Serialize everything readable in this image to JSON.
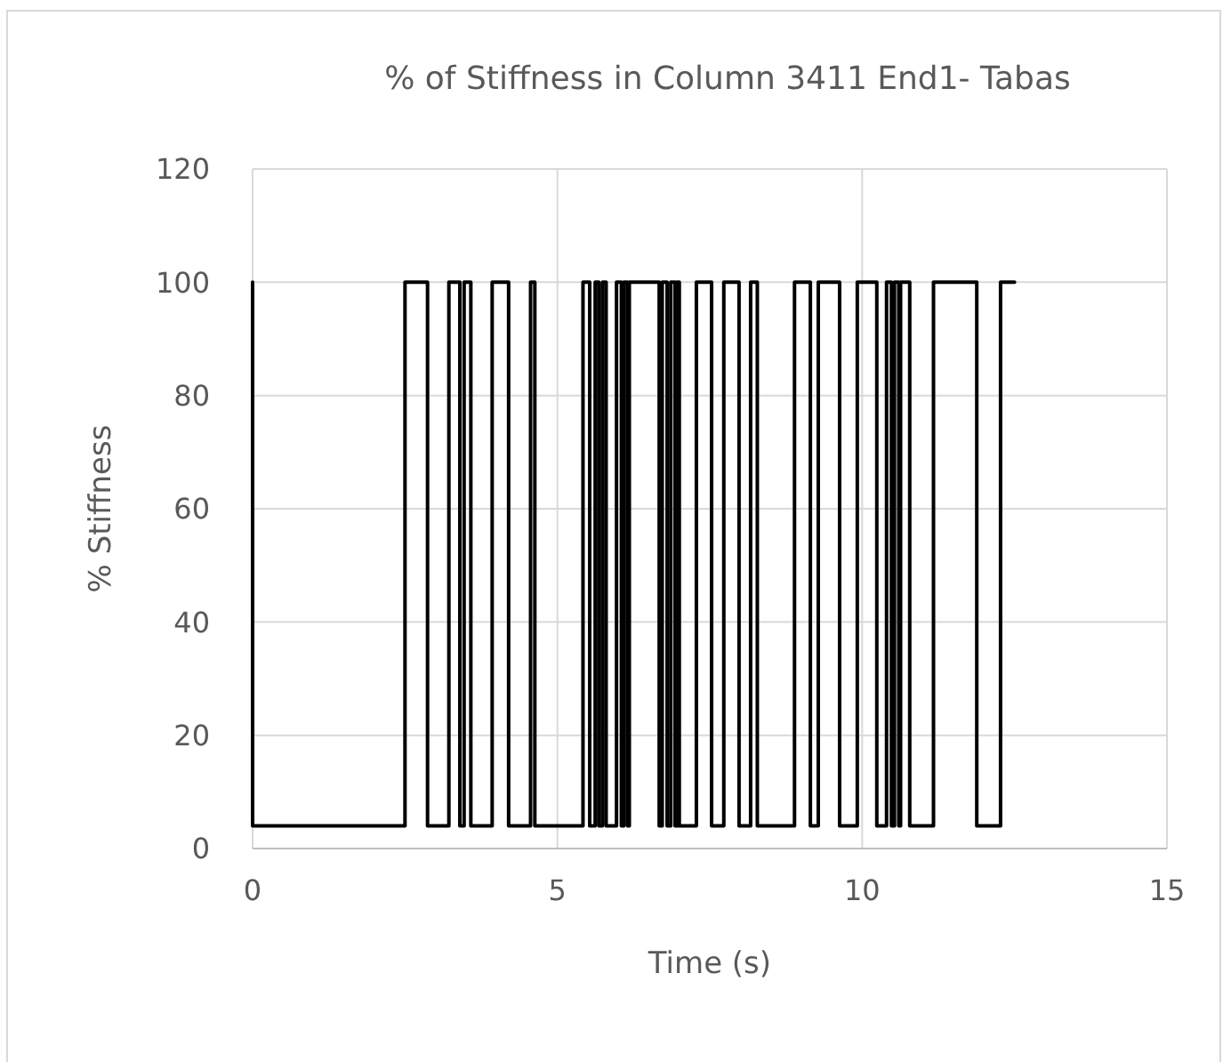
{
  "chart_data": {
    "type": "line",
    "title": "% of Stiffness in Column 3411 End1- Tabas",
    "xlabel": "Time (s)",
    "ylabel": "% Stiffness",
    "xlim": [
      0,
      15
    ],
    "xticks": [
      0,
      5,
      10,
      15
    ],
    "ylim": [
      0,
      120
    ],
    "yticks": [
      0,
      20,
      40,
      60,
      80,
      100,
      120
    ],
    "grid": true,
    "marker": "none",
    "line_style": "solid",
    "series": [
      {
        "color": "#000000",
        "x": [
          0,
          0,
          2.5,
          2.5,
          2.87,
          2.87,
          3.22,
          3.22,
          3.4,
          3.4,
          3.47,
          3.47,
          3.58,
          3.58,
          3.93,
          3.93,
          4.2,
          4.2,
          4.56,
          4.56,
          4.63,
          4.63,
          5.42,
          5.42,
          5.53,
          5.53,
          5.62,
          5.62,
          5.68,
          5.68,
          5.74,
          5.74,
          5.8,
          5.8,
          5.97,
          5.97,
          6.05,
          6.05,
          6.09,
          6.09,
          6.15,
          6.15,
          6.18,
          6.18,
          6.67,
          6.67,
          6.72,
          6.72,
          6.8,
          6.8,
          6.86,
          6.86,
          6.93,
          6.93,
          6.96,
          6.96,
          7.0,
          7.0,
          7.28,
          7.28,
          7.53,
          7.53,
          7.73,
          7.73,
          7.98,
          7.98,
          8.17,
          8.17,
          8.28,
          8.28,
          8.89,
          8.89,
          9.15,
          9.15,
          9.28,
          9.28,
          9.63,
          9.63,
          9.92,
          9.92,
          10.24,
          10.24,
          10.4,
          10.4,
          10.48,
          10.48,
          10.53,
          10.53,
          10.6,
          10.6,
          10.63,
          10.63,
          10.78,
          10.78,
          11.17,
          11.17,
          11.88,
          11.88,
          12.27,
          12.27,
          12.5
        ],
        "values": [
          100,
          4,
          4,
          100,
          100,
          4,
          4,
          100,
          100,
          4,
          4,
          100,
          100,
          4,
          4,
          100,
          100,
          4,
          4,
          100,
          100,
          4,
          4,
          100,
          100,
          4,
          4,
          100,
          100,
          4,
          4,
          100,
          100,
          4,
          4,
          100,
          100,
          4,
          4,
          100,
          100,
          4,
          4,
          100,
          100,
          4,
          4,
          100,
          100,
          4,
          4,
          100,
          100,
          4,
          4,
          100,
          100,
          4,
          4,
          100,
          100,
          4,
          4,
          100,
          100,
          4,
          4,
          100,
          100,
          4,
          4,
          100,
          100,
          4,
          4,
          100,
          100,
          4,
          4,
          100,
          100,
          4,
          4,
          100,
          100,
          4,
          4,
          100,
          100,
          4,
          4,
          100,
          100,
          4,
          4,
          100,
          100,
          4,
          4,
          100,
          100
        ]
      }
    ]
  }
}
